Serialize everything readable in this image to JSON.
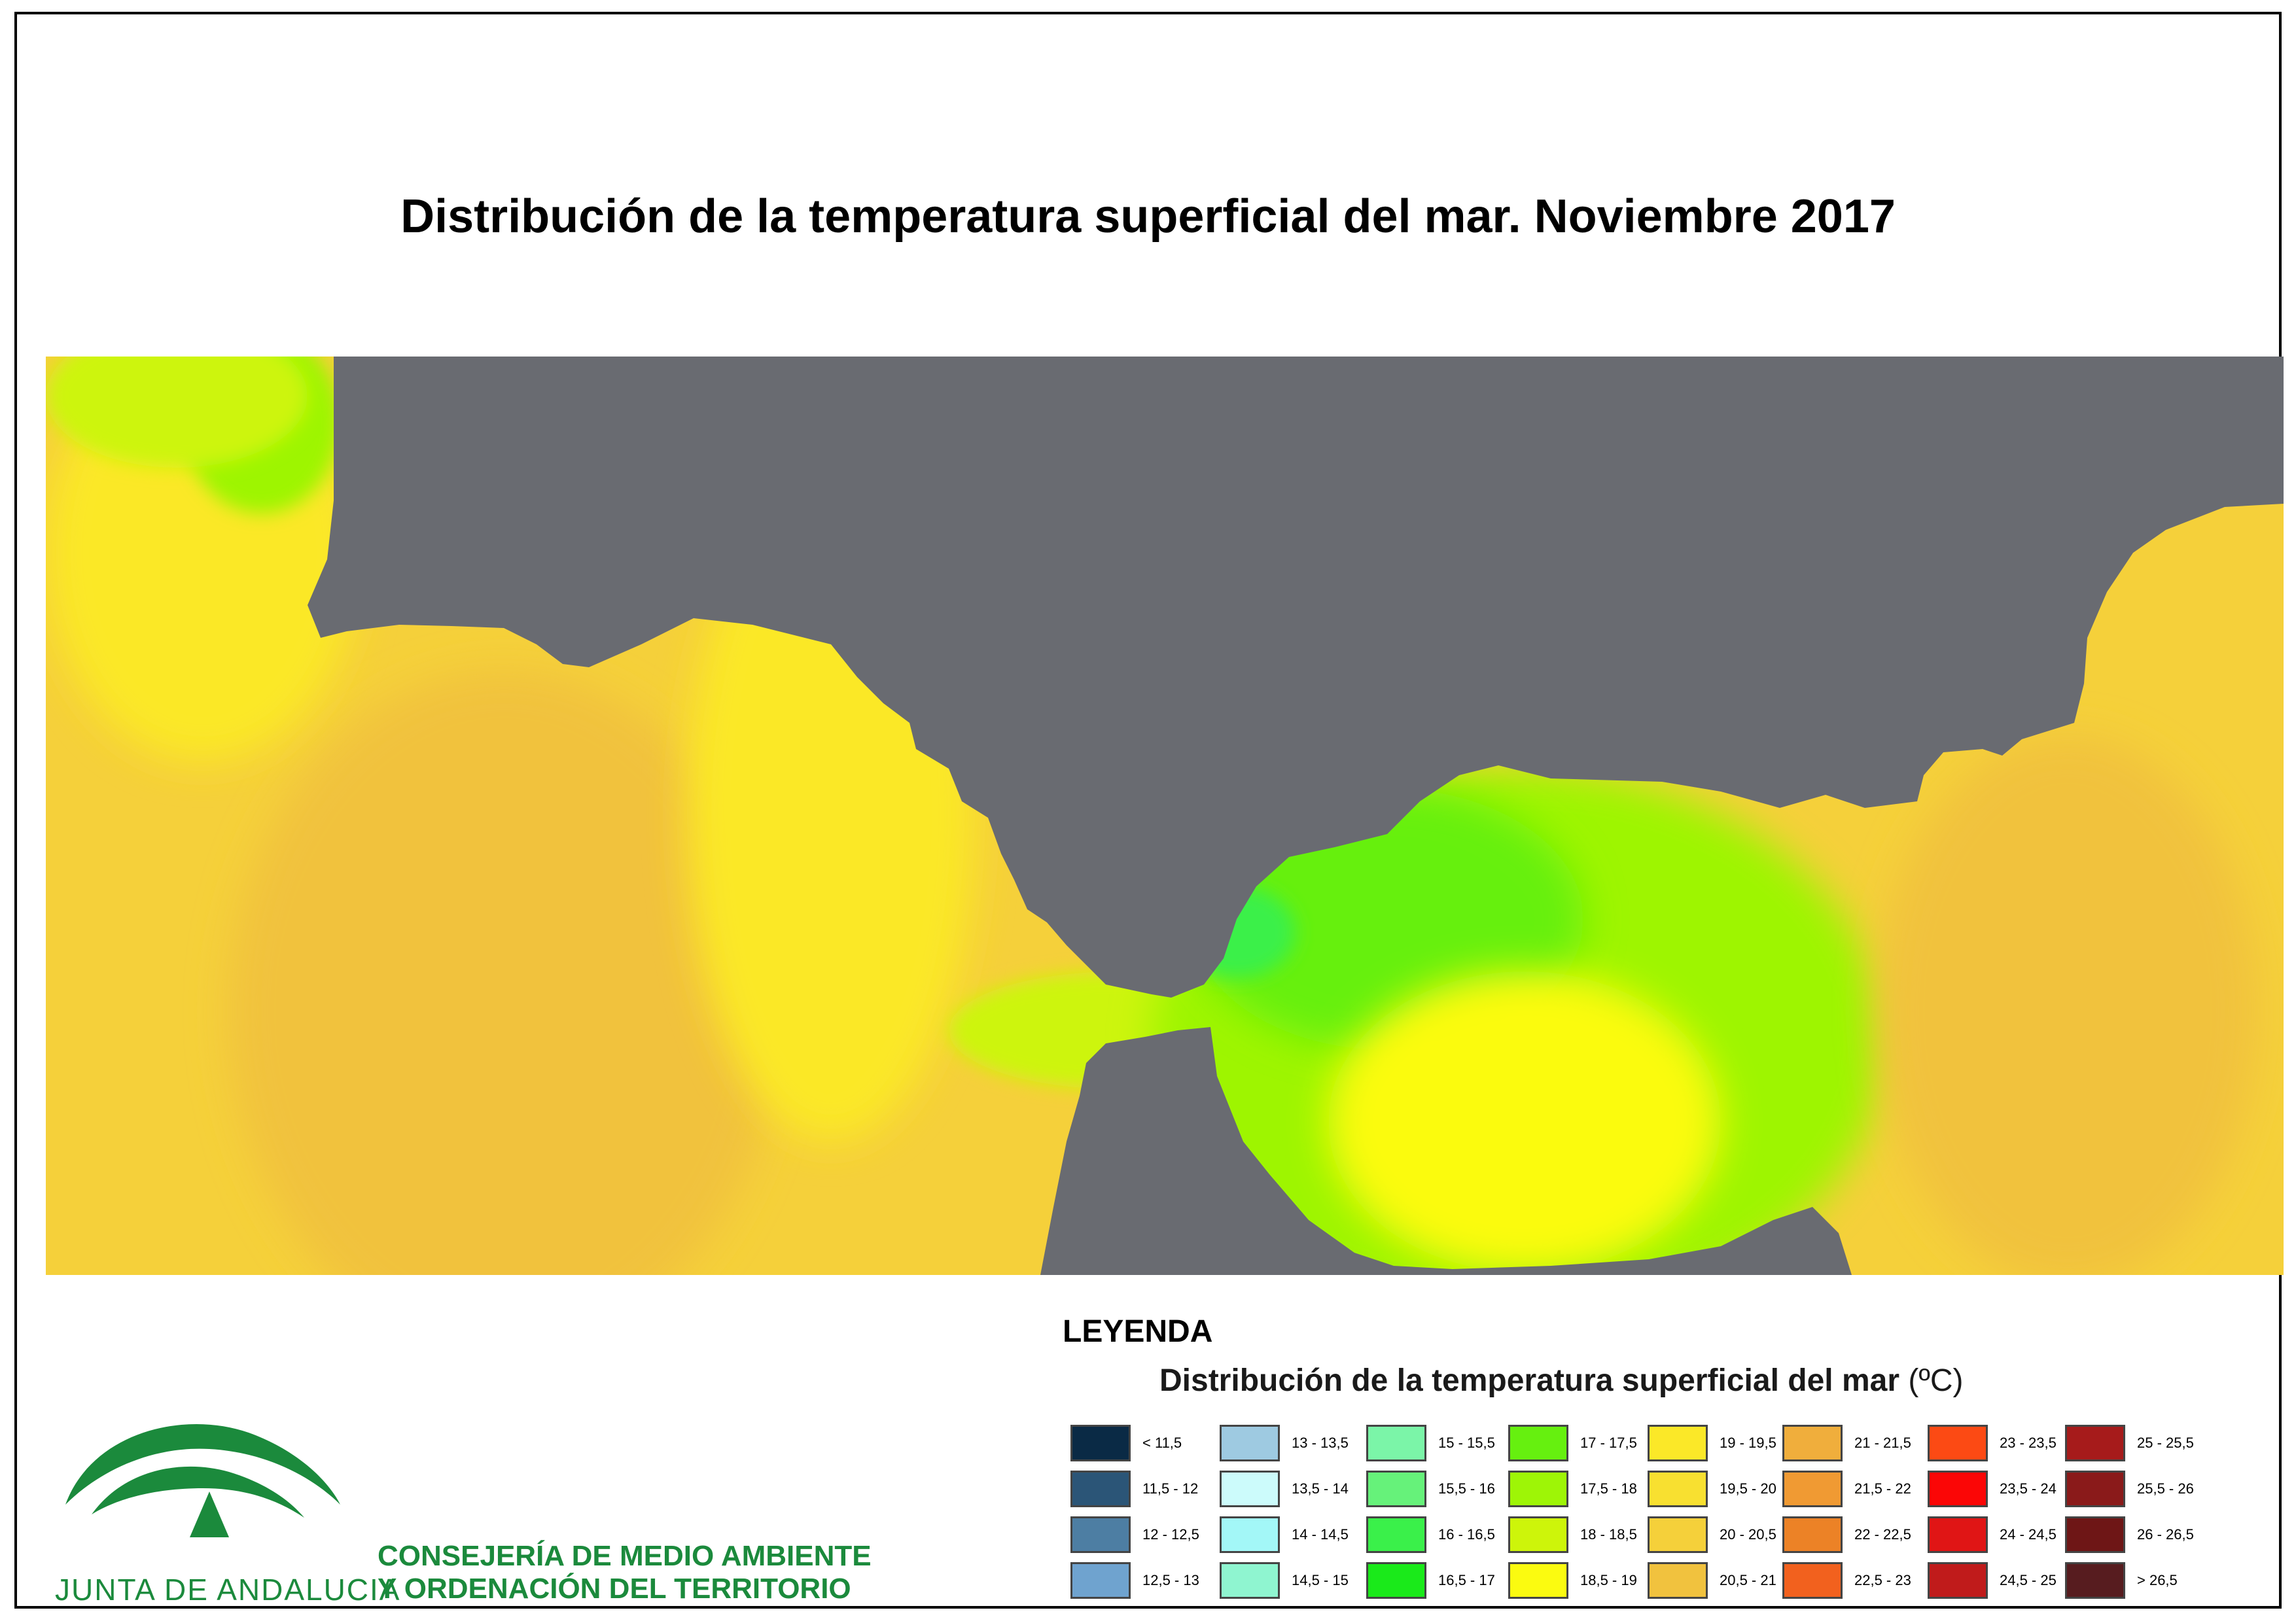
{
  "title": "Distribución de la temperatura superficial del mar. Noviembre 2017",
  "legend": {
    "heading": "LEYENDA",
    "subtitle": "Distribución de la temperatura superficial del mar",
    "unit": "(ºC)",
    "columns": [
      [
        {
          "label": "< 11,5",
          "color": "#0a2a45"
        },
        {
          "label": "11,5 - 12",
          "color": "#2b5577"
        },
        {
          "label": "12 - 12,5",
          "color": "#4d7ea3"
        },
        {
          "label": "12,5 - 13",
          "color": "#6fa3cf"
        }
      ],
      [
        {
          "label": "13 - 13,5",
          "color": "#9ecae1"
        },
        {
          "label": "13,5 - 14",
          "color": "#ccfbfb"
        },
        {
          "label": "14 - 14,5",
          "color": "#a3f7f7"
        },
        {
          "label": "14,5 - 15",
          "color": "#8ff5d0"
        }
      ],
      [
        {
          "label": "15 - 15,5",
          "color": "#7bf5a8"
        },
        {
          "label": "15,5 - 16",
          "color": "#66f27a"
        },
        {
          "label": "16 - 16,5",
          "color": "#3af04a"
        },
        {
          "label": "16,5 - 17",
          "color": "#1aea1a"
        }
      ],
      [
        {
          "label": "17 - 17,5",
          "color": "#66f00f"
        },
        {
          "label": "17,5 - 18",
          "color": "#9ef506"
        },
        {
          "label": "18 - 18,5",
          "color": "#cdf50a"
        },
        {
          "label": "18,5 - 19",
          "color": "#fbfb10"
        }
      ],
      [
        {
          "label": "19 - 19,5",
          "color": "#fbe828"
        },
        {
          "label": "19,5 - 20",
          "color": "#f8e030"
        },
        {
          "label": "20 - 20,5",
          "color": "#f5d03a"
        },
        {
          "label": "20,5 - 21",
          "color": "#f1c23e"
        }
      ],
      [
        {
          "label": "21 - 21,5",
          "color": "#f0ae3c"
        },
        {
          "label": "21,5 - 22",
          "color": "#f09a33"
        },
        {
          "label": "22 - 22,5",
          "color": "#ec8226"
        },
        {
          "label": "22,5 - 23",
          "color": "#f2611e"
        }
      ],
      [
        {
          "label": "23 - 23,5",
          "color": "#fc4a14"
        },
        {
          "label": "23,5 - 24",
          "color": "#fb0606"
        },
        {
          "label": "24 - 24,5",
          "color": "#e01515"
        },
        {
          "label": "24,5 - 25",
          "color": "#c01b1b"
        }
      ],
      [
        {
          "label": "25 - 25,5",
          "color": "#a61b1b"
        },
        {
          "label": "25,5 - 26",
          "color": "#8a1a1a"
        },
        {
          "label": "26 - 26,5",
          "color": "#6e1616"
        },
        {
          "label": "> 26,5",
          "color": "#571c1f"
        }
      ]
    ]
  },
  "organization": {
    "line1": "CONSEJERÍA DE MEDIO AMBIENTE",
    "line2": "Y ORDENACIÓN DEL TERRITORIO",
    "brand": "JUNTA DE ANDALUCIA"
  },
  "map_colors": {
    "land": "#696b71",
    "sea_orange": "#f1c23e",
    "sea_warm": "#f5d03a",
    "sea_yellow": "#fbe828",
    "sea_bright": "#fbfb10",
    "sea_lime": "#cdf50a",
    "sea_green": "#9ef506",
    "sea_deep_green": "#66f00f",
    "sea_strong_green": "#3af04a"
  }
}
